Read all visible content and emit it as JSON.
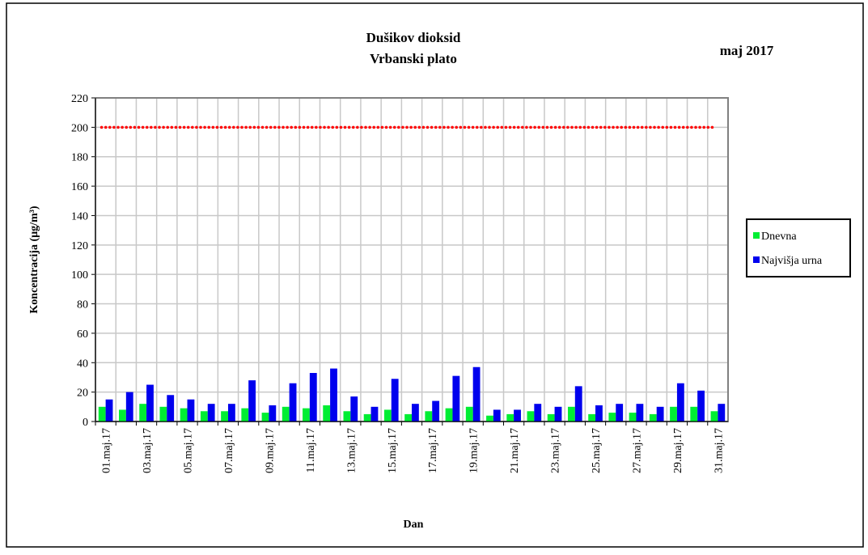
{
  "chart_data": {
    "type": "bar",
    "title": "Dušikov dioksid",
    "subtitle": "Vrbanski plato",
    "period": "maj 2017",
    "y_label": "Koncentracija  (µg/m³)",
    "x_label": "Dan",
    "categories": [
      "01.maj.17",
      null,
      "03.maj.17",
      null,
      "05.maj.17",
      null,
      "07.maj.17",
      null,
      "09.maj.17",
      null,
      "11.maj.17",
      null,
      "13.maj.17",
      null,
      "15.maj.17",
      null,
      "17.maj.17",
      null,
      "19.maj.17",
      null,
      "21.maj.17",
      null,
      "23.maj.17",
      null,
      "25.maj.17",
      null,
      "27.maj.17",
      null,
      "29.maj.17",
      null,
      "31.maj.17"
    ],
    "series": [
      {
        "name": "Dnevna",
        "color": "#00ee33",
        "values": [
          10,
          8,
          12,
          10,
          9,
          7,
          7,
          9,
          6,
          10,
          9,
          11,
          7,
          5,
          8,
          5,
          7,
          9,
          10,
          4,
          5,
          7,
          5,
          10,
          5,
          6,
          6,
          5,
          10,
          10,
          7
        ]
      },
      {
        "name": "Najvišja urna",
        "color": "#0000ee",
        "values": [
          15,
          20,
          25,
          18,
          15,
          12,
          12,
          28,
          11,
          26,
          33,
          36,
          17,
          10,
          29,
          12,
          14,
          31,
          37,
          8,
          8,
          12,
          10,
          24,
          11,
          12,
          12,
          10,
          26,
          21,
          12
        ]
      }
    ],
    "limit_line": {
      "value": 200,
      "color": "#ff0000"
    },
    "ylim": [
      0,
      220
    ],
    "yticks": [
      0,
      20,
      40,
      60,
      80,
      100,
      120,
      140,
      160,
      180,
      200,
      220
    ],
    "grid": true,
    "legend": "right"
  }
}
